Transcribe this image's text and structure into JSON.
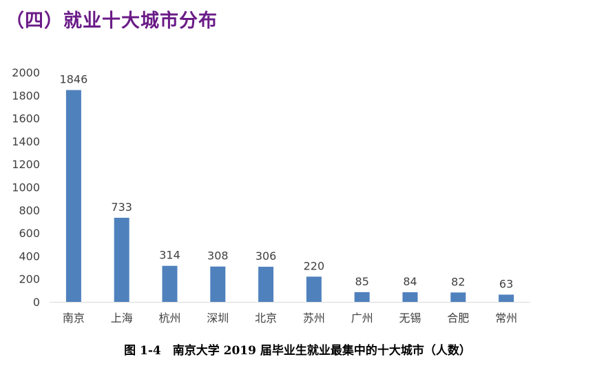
{
  "section_heading": "（四）就业十大城市分布",
  "caption": "图 1-4　南京大学 2019 届毕业生就业最集中的十大城市（人数）",
  "colors": {
    "bar": "#4f81bd",
    "heading": "#6a1b87",
    "text": "#404040",
    "axis": "#d9d9d9"
  },
  "chart_data": {
    "type": "bar",
    "title": "",
    "xlabel": "",
    "ylabel": "",
    "categories": [
      "南京",
      "上海",
      "杭州",
      "深圳",
      "北京",
      "苏州",
      "广州",
      "无锡",
      "合肥",
      "常州"
    ],
    "values": [
      1846,
      733,
      314,
      308,
      306,
      220,
      85,
      84,
      82,
      63
    ],
    "ylim": [
      0,
      2000
    ],
    "yticks": [
      0,
      200,
      400,
      600,
      800,
      1000,
      1200,
      1400,
      1600,
      1800,
      2000
    ],
    "grid": false,
    "legend": "none",
    "data_labels": true
  }
}
